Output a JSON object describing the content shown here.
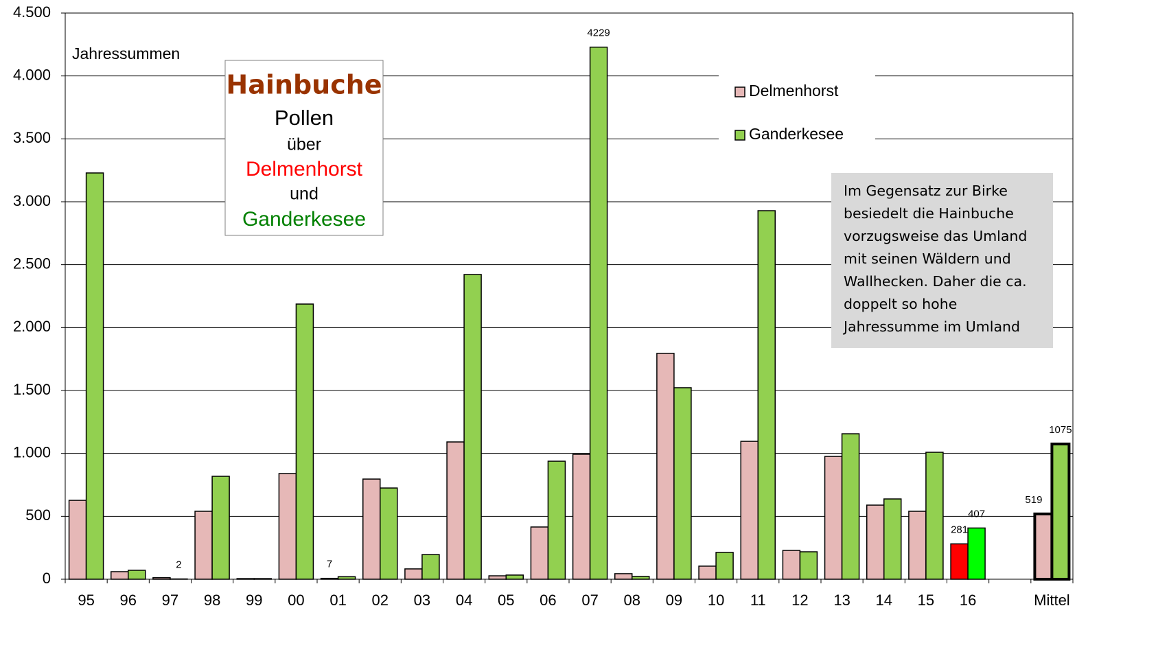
{
  "chart_data": {
    "type": "bar",
    "ylabel": "Jahressummen",
    "title_box": {
      "title": "Hainbuche",
      "lines": [
        {
          "text": "Pollen",
          "color": "#000000"
        },
        {
          "text": "über",
          "color": "#000000"
        },
        {
          "text": "Delmenhorst",
          "color": "#ff0000"
        },
        {
          "text": "und",
          "color": "#000000"
        },
        {
          "text": "Ganderkesee",
          "color": "#008000"
        }
      ]
    },
    "annotation": [
      "Im Gegensatz zur Birke",
      "besiedelt die Hainbuche",
      "vorzugsweise das Umland",
      "mit seinen Wäldern und",
      "Wallhecken. Daher die ca.",
      "doppelt so hohe",
      "Jahressumme im Umland"
    ],
    "categories": [
      "95",
      "96",
      "97",
      "98",
      "99",
      "00",
      "01",
      "02",
      "03",
      "04",
      "05",
      "06",
      "07",
      "08",
      "09",
      "10",
      "11",
      "12",
      "13",
      "14",
      "15",
      "16",
      null,
      "Mittel"
    ],
    "series": [
      {
        "name": "Delmenhorst",
        "color": "#e6b8b7",
        "values": [
          627,
          60,
          12,
          540,
          5,
          840,
          7,
          796,
          82,
          1091,
          27,
          415,
          993,
          44,
          1795,
          104,
          1096,
          229,
          976,
          589,
          540,
          281,
          null,
          519
        ],
        "value_labels": [
          null,
          null,
          null,
          null,
          null,
          null,
          "7",
          null,
          null,
          null,
          null,
          null,
          null,
          null,
          null,
          null,
          null,
          null,
          null,
          null,
          null,
          "281",
          null,
          "519"
        ],
        "colors": {
          "21": "#ff0000"
        }
      },
      {
        "name": "Ganderkesee",
        "color": "#92d050",
        "values": [
          3229,
          71,
          2,
          818,
          5,
          2187,
          20,
          725,
          196,
          2422,
          33,
          938,
          4229,
          22,
          1522,
          213,
          2929,
          218,
          1156,
          638,
          1009,
          407,
          null,
          1075
        ],
        "value_labels": [
          null,
          null,
          "2",
          null,
          null,
          null,
          null,
          null,
          null,
          null,
          null,
          null,
          "4229",
          null,
          null,
          null,
          null,
          null,
          null,
          null,
          null,
          "407",
          null,
          "1075"
        ],
        "colors": {
          "21": "#00ff00"
        }
      }
    ],
    "bold_outline_categories": [
      "Mittel"
    ],
    "ylim": [
      0,
      4500
    ],
    "yticks": [
      0,
      500,
      {
        "value": 1000,
        "label": "1.000"
      },
      {
        "value": 1500,
        "label": "1.500"
      },
      {
        "value": 2000,
        "label": "2.000"
      },
      {
        "value": 2500,
        "label": "2.500"
      },
      {
        "value": 3000,
        "label": "3.000"
      },
      {
        "value": 3500,
        "label": "3.500"
      },
      {
        "value": 4000,
        "label": "4.000"
      },
      {
        "value": 4500,
        "label": "4.500"
      }
    ],
    "grid": true,
    "legend": "upper right"
  }
}
